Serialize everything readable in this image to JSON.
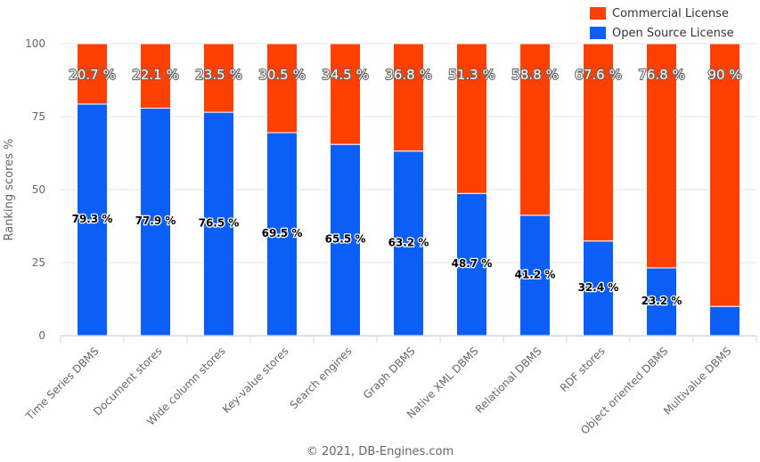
{
  "chart_data": {
    "type": "bar",
    "stacked": true,
    "categories": [
      "Time Series DBMS",
      "Document stores",
      "Wide column stores",
      "Key-value stores",
      "Search engines",
      "Graph DBMS",
      "Native XML DBMS",
      "Relational DBMS",
      "RDF stores",
      "Object oriented DBMS",
      "Multivalue DBMS"
    ],
    "series": [
      {
        "name": "Open Source License",
        "color": "#0b5ff7",
        "values": [
          79.3,
          77.9,
          76.5,
          69.5,
          65.5,
          63.2,
          48.7,
          41.2,
          32.4,
          23.2,
          10
        ],
        "labels": [
          "79.3 %",
          "77.9 %",
          "76.5 %",
          "69.5 %",
          "65.5 %",
          "63.2 %",
          "48.7 %",
          "41.2 %",
          "32.4 %",
          "23.2 %",
          ""
        ]
      },
      {
        "name": "Commercial License",
        "color": "#ff4000",
        "values": [
          20.7,
          22.1,
          23.5,
          30.5,
          34.5,
          36.8,
          51.3,
          58.8,
          67.6,
          76.8,
          90
        ],
        "labels": [
          "20.7 %",
          "22.1 %",
          "23.5 %",
          "30.5 %",
          "34.5 %",
          "36.8 %",
          "51.3 %",
          "58.8 %",
          "67.6 %",
          "76.8 %",
          "90 %"
        ]
      }
    ],
    "ylabel": "Ranking scores %",
    "ylim": [
      0,
      100
    ],
    "yticks": [
      0,
      25,
      50,
      75,
      100
    ],
    "grid": true,
    "legend": "top-right"
  },
  "legend": {
    "items": [
      {
        "label": "Commercial License",
        "color": "#ff4000"
      },
      {
        "label": "Open Source License",
        "color": "#0b5ff7"
      }
    ]
  },
  "credits": "© 2021, DB-Engines.com"
}
